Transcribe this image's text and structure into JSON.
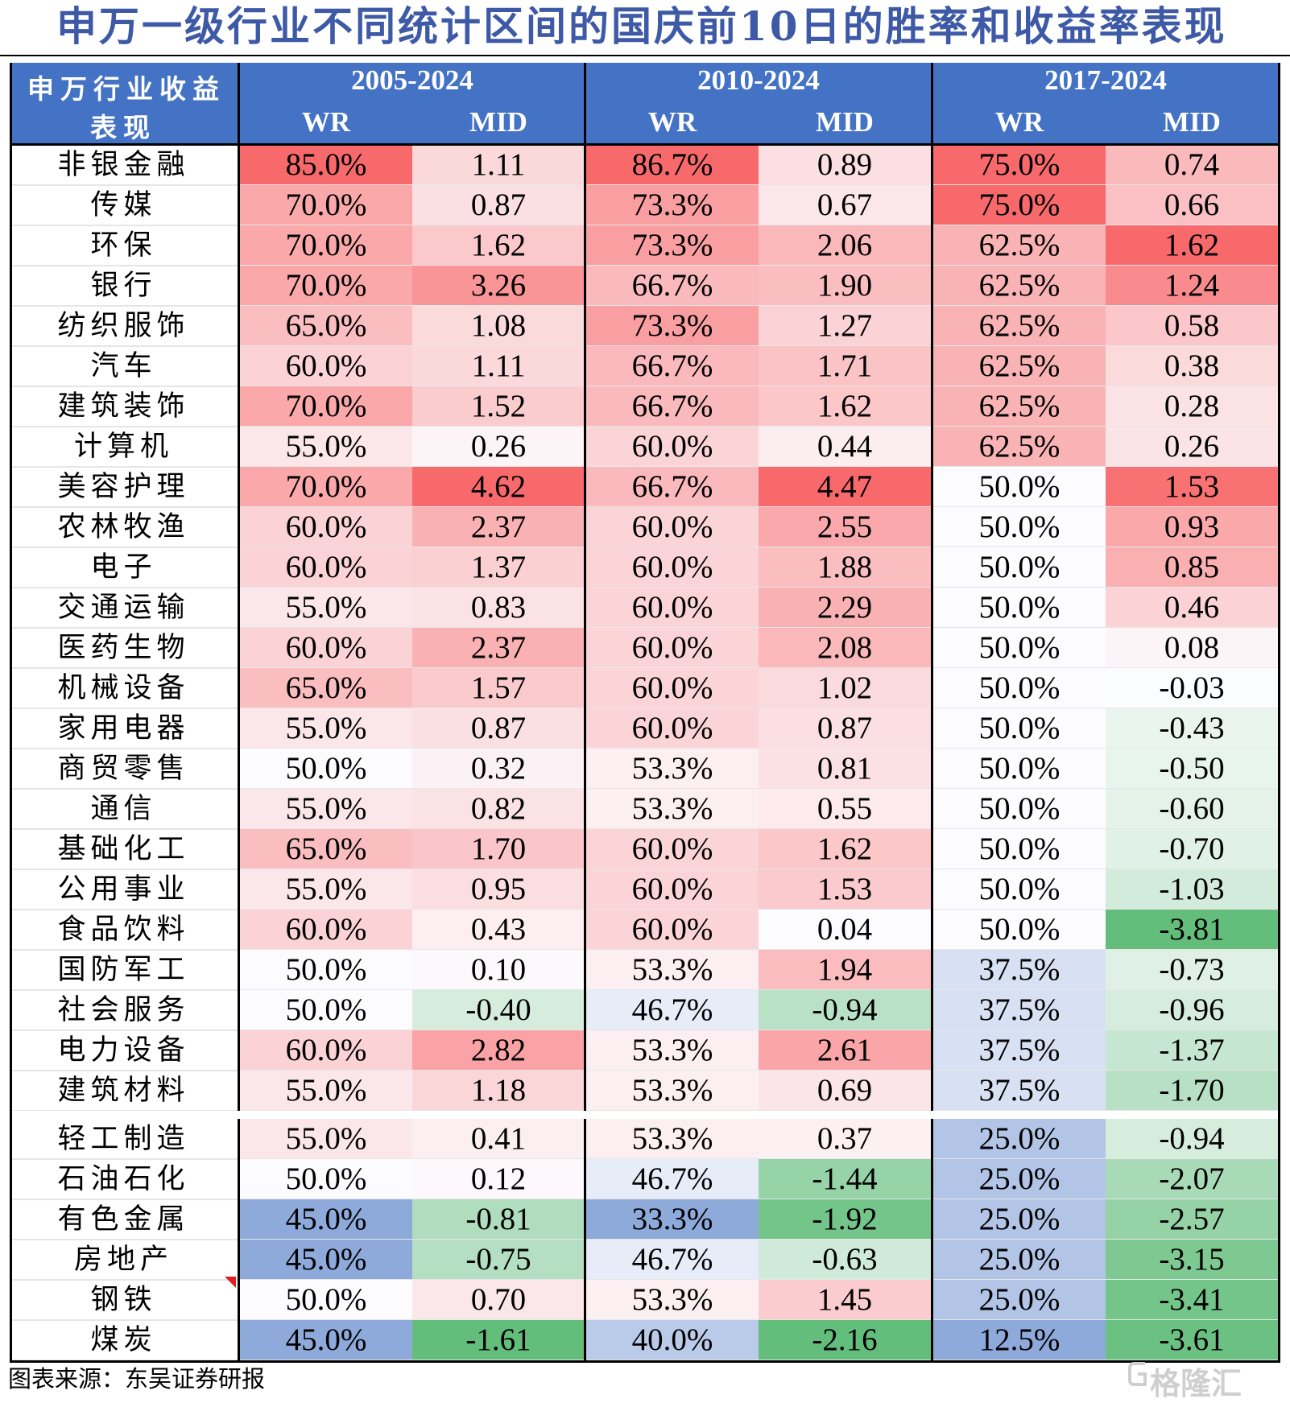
{
  "title": "申万一级行业不同统计区间的国庆前10日的胜率和收益率表现",
  "header": {
    "corner_line1": "申万行业收益",
    "corner_line2": "表现",
    "periods": [
      "2005-2024",
      "2010-2024",
      "2017-2024"
    ],
    "metric_wr": "WR",
    "metric_mid": "MID"
  },
  "source": "图表来源：东吴证券研报",
  "watermark": "格隆汇",
  "colors": {
    "header_bg": "#4472c4",
    "title_text": "#3e5aa6",
    "positive": "#f8696b",
    "negative": "#63be7b",
    "wr_low": "#8eaadb"
  },
  "chart_data": {
    "type": "table",
    "title": "申万一级行业不同统计区间的国庆前10日的胜率和收益率表现",
    "columns": [
      "2005-2024 WR",
      "2005-2024 MID",
      "2010-2024 WR",
      "2010-2024 MID",
      "2017-2024 WR",
      "2017-2024 MID"
    ],
    "rows": [
      {
        "industry": "非银金融",
        "values": [
          "85.0%",
          "1.11",
          "86.7%",
          "0.89",
          "75.0%",
          "0.74"
        ]
      },
      {
        "industry": "传媒",
        "values": [
          "70.0%",
          "0.87",
          "73.3%",
          "0.67",
          "75.0%",
          "0.66"
        ]
      },
      {
        "industry": "环保",
        "values": [
          "70.0%",
          "1.62",
          "73.3%",
          "2.06",
          "62.5%",
          "1.62"
        ]
      },
      {
        "industry": "银行",
        "values": [
          "70.0%",
          "3.26",
          "66.7%",
          "1.90",
          "62.5%",
          "1.24"
        ]
      },
      {
        "industry": "纺织服饰",
        "values": [
          "65.0%",
          "1.08",
          "73.3%",
          "1.27",
          "62.5%",
          "0.58"
        ]
      },
      {
        "industry": "汽车",
        "values": [
          "60.0%",
          "1.11",
          "66.7%",
          "1.71",
          "62.5%",
          "0.38"
        ]
      },
      {
        "industry": "建筑装饰",
        "values": [
          "70.0%",
          "1.52",
          "66.7%",
          "1.62",
          "62.5%",
          "0.28"
        ]
      },
      {
        "industry": "计算机",
        "values": [
          "55.0%",
          "0.26",
          "60.0%",
          "0.44",
          "62.5%",
          "0.26"
        ]
      },
      {
        "industry": "美容护理",
        "values": [
          "70.0%",
          "4.62",
          "66.7%",
          "4.47",
          "50.0%",
          "1.53"
        ]
      },
      {
        "industry": "农林牧渔",
        "values": [
          "60.0%",
          "2.37",
          "60.0%",
          "2.55",
          "50.0%",
          "0.93"
        ]
      },
      {
        "industry": "电子",
        "values": [
          "60.0%",
          "1.37",
          "60.0%",
          "1.88",
          "50.0%",
          "0.85"
        ]
      },
      {
        "industry": "交通运输",
        "values": [
          "55.0%",
          "0.83",
          "60.0%",
          "2.29",
          "50.0%",
          "0.46"
        ]
      },
      {
        "industry": "医药生物",
        "values": [
          "60.0%",
          "2.37",
          "60.0%",
          "2.08",
          "50.0%",
          "0.08"
        ]
      },
      {
        "industry": "机械设备",
        "values": [
          "65.0%",
          "1.57",
          "60.0%",
          "1.02",
          "50.0%",
          "-0.03"
        ]
      },
      {
        "industry": "家用电器",
        "values": [
          "55.0%",
          "0.87",
          "60.0%",
          "0.87",
          "50.0%",
          "-0.43"
        ]
      },
      {
        "industry": "商贸零售",
        "values": [
          "50.0%",
          "0.32",
          "53.3%",
          "0.81",
          "50.0%",
          "-0.50"
        ]
      },
      {
        "industry": "通信",
        "values": [
          "55.0%",
          "0.82",
          "53.3%",
          "0.55",
          "50.0%",
          "-0.60"
        ]
      },
      {
        "industry": "基础化工",
        "values": [
          "65.0%",
          "1.70",
          "60.0%",
          "1.62",
          "50.0%",
          "-0.70"
        ]
      },
      {
        "industry": "公用事业",
        "values": [
          "55.0%",
          "0.95",
          "60.0%",
          "1.53",
          "50.0%",
          "-1.03"
        ]
      },
      {
        "industry": "食品饮料",
        "values": [
          "60.0%",
          "0.43",
          "60.0%",
          "0.04",
          "50.0%",
          "-3.81"
        ]
      },
      {
        "industry": "国防军工",
        "values": [
          "50.0%",
          "0.10",
          "53.3%",
          "1.94",
          "37.5%",
          "-0.73"
        ]
      },
      {
        "industry": "社会服务",
        "values": [
          "50.0%",
          "-0.40",
          "46.7%",
          "-0.94",
          "37.5%",
          "-0.96"
        ]
      },
      {
        "industry": "电力设备",
        "values": [
          "60.0%",
          "2.82",
          "53.3%",
          "2.61",
          "37.5%",
          "-1.37"
        ]
      },
      {
        "industry": "建筑材料",
        "values": [
          "55.0%",
          "1.18",
          "53.3%",
          "0.69",
          "37.5%",
          "-1.70"
        ]
      },
      {
        "industry": "轻工制造",
        "values": [
          "55.0%",
          "0.41",
          "53.3%",
          "0.37",
          "25.0%",
          "-0.94"
        ]
      },
      {
        "industry": "石油石化",
        "values": [
          "50.0%",
          "0.12",
          "46.7%",
          "-1.44",
          "25.0%",
          "-2.07"
        ]
      },
      {
        "industry": "有色金属",
        "values": [
          "45.0%",
          "-0.81",
          "33.3%",
          "-1.92",
          "25.0%",
          "-2.57"
        ]
      },
      {
        "industry": "房地产",
        "values": [
          "45.0%",
          "-0.75",
          "46.7%",
          "-0.63",
          "25.0%",
          "-3.15"
        ]
      },
      {
        "industry": "钢铁",
        "values": [
          "50.0%",
          "0.70",
          "53.3%",
          "1.45",
          "25.0%",
          "-3.41"
        ]
      },
      {
        "industry": "煤炭",
        "values": [
          "45.0%",
          "-1.61",
          "40.0%",
          "-2.16",
          "12.5%",
          "-3.61"
        ]
      }
    ]
  }
}
